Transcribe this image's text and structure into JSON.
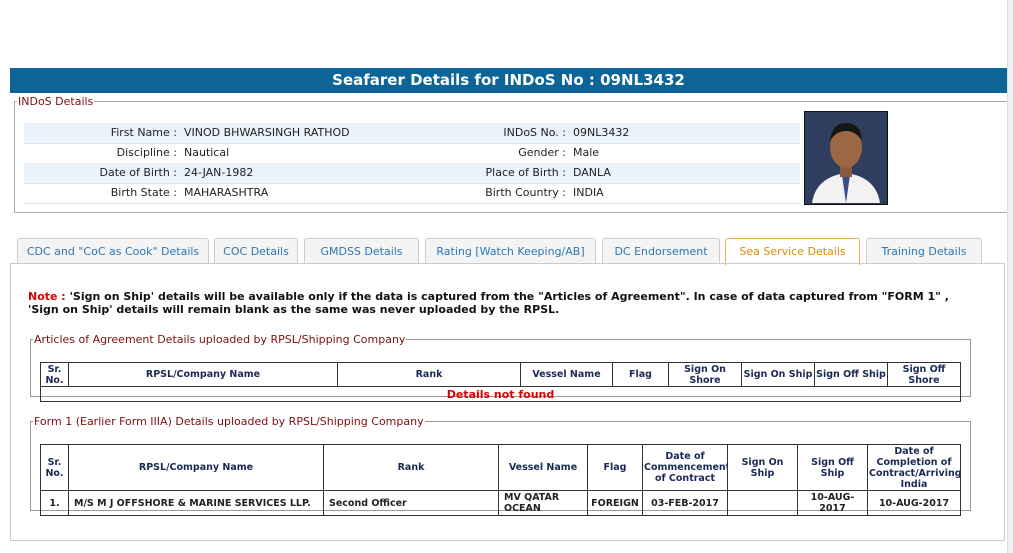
{
  "header": {
    "title": "Seafarer Details for INDoS No : 09NL3432"
  },
  "indos_details": {
    "legend": "INDoS Details",
    "rows": [
      [
        {
          "label": "First Name :",
          "value": "VINOD BHWARSINGH RATHOD"
        },
        {
          "label": "INDoS No. :",
          "value": "09NL3432"
        }
      ],
      [
        {
          "label": "Discipline :",
          "value": "Nautical"
        },
        {
          "label": "Gender :",
          "value": "Male"
        }
      ],
      [
        {
          "label": "Date of Birth :",
          "value": "24-JAN-1982"
        },
        {
          "label": "Place of Birth :",
          "value": "DANLA"
        }
      ],
      [
        {
          "label": "Birth State :",
          "value": "MAHARASHTRA"
        },
        {
          "label": "Birth Country :",
          "value": "INDIA"
        }
      ]
    ]
  },
  "tabs": [
    "CDC and \"CoC as Cook\" Details",
    "COC Details",
    "GMDSS Details",
    "Rating [Watch Keeping/AB]",
    "DC Endorsement",
    "Sea Service Details",
    "Training Details"
  ],
  "active_tab": 5,
  "note": {
    "label": "Note :",
    "text": "'Sign on Ship' details will be available only if the data is captured from the \"Articles of Agreement\". In case of data captured from \"FORM 1\" , 'Sign on Ship' details will remain blank as the same was never uploaded by the RPSL."
  },
  "articles": {
    "legend": "Articles of Agreement Details uploaded by RPSL/Shipping Company",
    "columns": [
      "Sr. No.",
      "RPSL/Company Name",
      "Rank",
      "Vessel Name",
      "Flag",
      "Sign On Shore",
      "Sign On Ship",
      "Sign Off Ship",
      "Sign Off Shore"
    ],
    "empty_message": "Details not found"
  },
  "form1": {
    "legend": "Form 1 (Earlier Form IIIA) Details uploaded by RPSL/Shipping Company",
    "columns": [
      "Sr. No.",
      "RPSL/Company Name",
      "Rank",
      "Vessel Name",
      "Flag",
      "Date of Commencement of Contract",
      "Sign On Ship",
      "Sign Off Ship",
      "Date of Completion of Contract/Arriving India"
    ],
    "rows": [
      [
        "1.",
        "M/S M J OFFSHORE & MARINE SERVICES LLP.",
        "Second Officer",
        "MV QATAR OCEAN",
        "FOREIGN",
        "03-FEB-2017",
        null,
        "10-AUG-2017",
        "10-AUG-2017"
      ]
    ]
  }
}
